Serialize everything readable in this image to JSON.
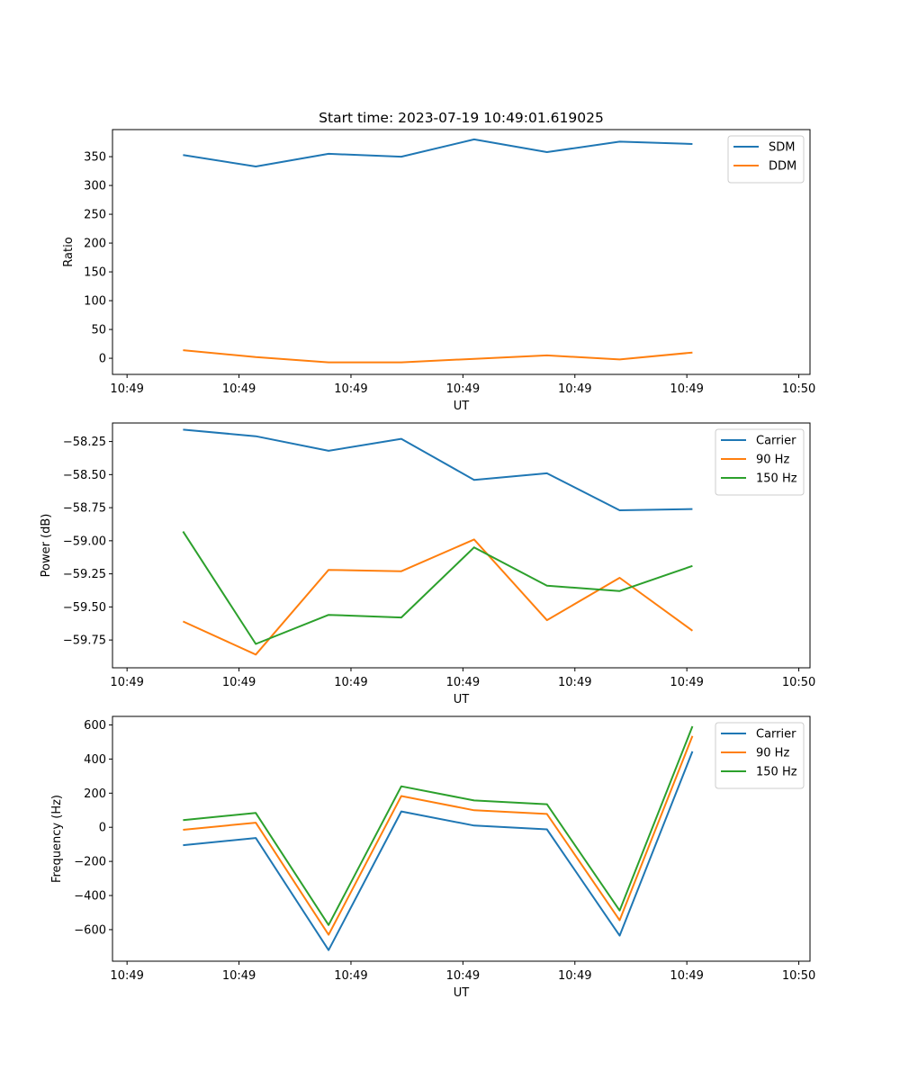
{
  "figure": {
    "title": "Start time: 2023-07-19 10:49:01.619025"
  },
  "colors": {
    "blue": "#1f77b4",
    "orange": "#ff7f0e",
    "green": "#2ca02c"
  },
  "chart_data": [
    {
      "type": "line",
      "xlabel": "UT",
      "ylabel": "Ratio",
      "x_tick_labels": [
        "10:49",
        "10:49",
        "10:49",
        "10:49",
        "10:49",
        "10:49",
        "10:50"
      ],
      "y_ticks": [
        0,
        50,
        100,
        150,
        200,
        250,
        300,
        350
      ],
      "y_tick_labels": [
        "0",
        "50",
        "100",
        "150",
        "200",
        "250",
        "300",
        "350"
      ],
      "ylim": [
        -28,
        397
      ],
      "xlim": [
        -0.13,
        6.1
      ],
      "x": [
        0.5,
        1.15,
        1.8,
        2.45,
        3.1,
        3.75,
        4.4,
        5.05
      ],
      "legend": "upper right",
      "series": [
        {
          "name": "SDM",
          "color": "#1f77b4",
          "values": [
            353,
            333,
            355,
            350,
            380,
            358,
            376,
            372
          ]
        },
        {
          "name": "DDM",
          "color": "#ff7f0e",
          "values": [
            14,
            2,
            -7,
            -7,
            -1,
            5,
            -2,
            10
          ]
        }
      ]
    },
    {
      "type": "line",
      "xlabel": "UT",
      "ylabel": "Power (dB)",
      "x_tick_labels": [
        "10:49",
        "10:49",
        "10:49",
        "10:49",
        "10:49",
        "10:49",
        "10:50"
      ],
      "y_ticks": [
        -59.75,
        -59.5,
        -59.25,
        -59.0,
        -58.75,
        -58.5,
        -58.25
      ],
      "y_tick_labels": [
        "−59.75",
        "−59.50",
        "−59.25",
        "−59.00",
        "−58.75",
        "−58.50",
        "−58.25"
      ],
      "ylim": [
        -59.96,
        -58.11
      ],
      "xlim": [
        -0.13,
        6.1
      ],
      "x": [
        0.5,
        1.15,
        1.8,
        2.45,
        3.1,
        3.75,
        4.4,
        5.05
      ],
      "legend": "upper right",
      "series": [
        {
          "name": "Carrier",
          "color": "#1f77b4",
          "values": [
            -58.16,
            -58.21,
            -58.32,
            -58.23,
            -58.54,
            -58.49,
            -58.77,
            -58.76
          ]
        },
        {
          "name": "90 Hz",
          "color": "#ff7f0e",
          "values": [
            -59.61,
            -59.86,
            -59.22,
            -59.23,
            -58.99,
            -59.6,
            -59.28,
            -59.68
          ]
        },
        {
          "name": "150 Hz",
          "color": "#2ca02c",
          "values": [
            -58.93,
            -59.78,
            -59.56,
            -59.58,
            -59.05,
            -59.34,
            -59.38,
            -59.19
          ]
        }
      ]
    },
    {
      "type": "line",
      "xlabel": "UT",
      "ylabel": "Frequency (Hz)",
      "x_tick_labels": [
        "10:49",
        "10:49",
        "10:49",
        "10:49",
        "10:49",
        "10:49",
        "10:50"
      ],
      "y_ticks": [
        -600,
        -400,
        -200,
        0,
        200,
        400,
        600
      ],
      "y_tick_labels": [
        "−600",
        "−400",
        "−200",
        "0",
        "200",
        "400",
        "600"
      ],
      "ylim": [
        -785,
        650
      ],
      "xlim": [
        -0.13,
        6.1
      ],
      "x": [
        0.5,
        1.15,
        1.8,
        2.45,
        3.1,
        3.75,
        4.4,
        5.05
      ],
      "legend": "upper right",
      "series": [
        {
          "name": "Carrier",
          "color": "#1f77b4",
          "values": [
            -105,
            -63,
            -720,
            93,
            10,
            -12,
            -635,
            445
          ]
        },
        {
          "name": "90 Hz",
          "color": "#ff7f0e",
          "values": [
            -15,
            27,
            -630,
            183,
            100,
            78,
            -545,
            535
          ]
        },
        {
          "name": "150 Hz",
          "color": "#2ca02c",
          "values": [
            42,
            84,
            -573,
            240,
            157,
            135,
            -488,
            592
          ]
        }
      ]
    }
  ]
}
